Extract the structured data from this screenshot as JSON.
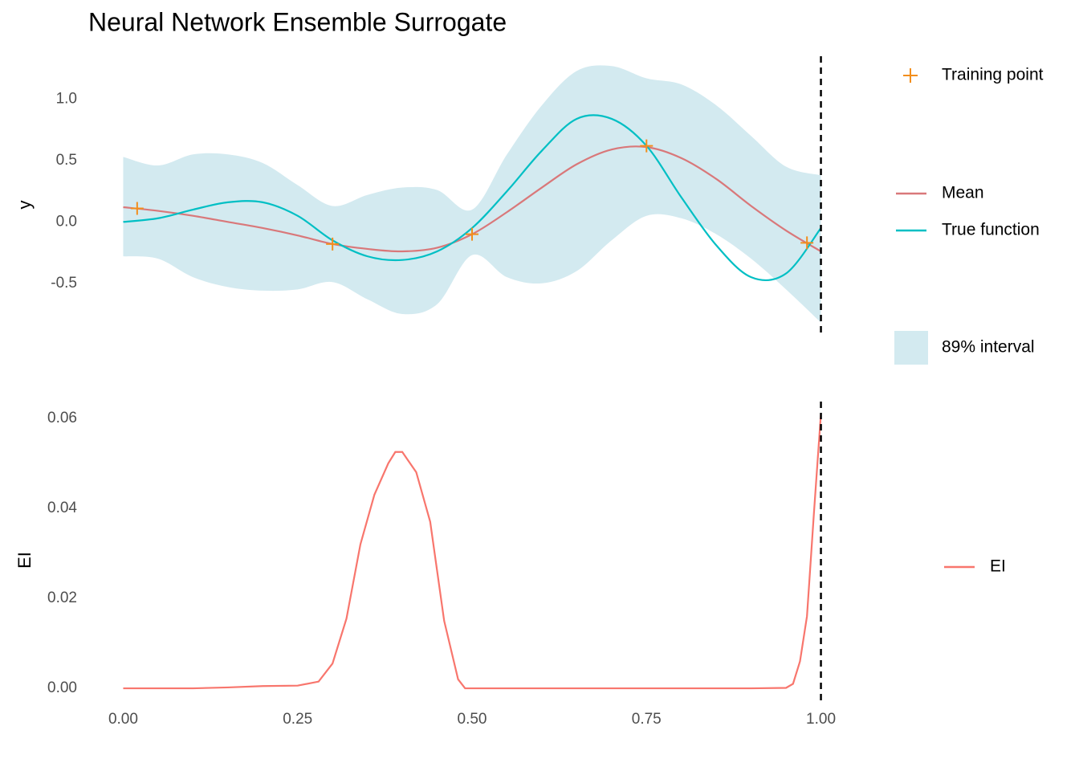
{
  "chart_data": [
    {
      "type": "line",
      "title": "Neural Network Ensemble Surrogate",
      "y_label": "y",
      "x": [
        0,
        0.05,
        0.1,
        0.15,
        0.2,
        0.25,
        0.3,
        0.35,
        0.4,
        0.45,
        0.5,
        0.55,
        0.6,
        0.65,
        0.7,
        0.75,
        0.8,
        0.85,
        0.9,
        0.95,
        1
      ],
      "series": [
        {
          "name": "Mean",
          "color": "#d9787a",
          "values": [
            0.12,
            0.09,
            0.05,
            0.0,
            -0.05,
            -0.11,
            -0.18,
            -0.22,
            -0.24,
            -0.21,
            -0.1,
            0.08,
            0.28,
            0.47,
            0.59,
            0.61,
            0.52,
            0.35,
            0.13,
            -0.07,
            -0.24
          ]
        },
        {
          "name": "True function",
          "color": "#00bfc4",
          "values": [
            0,
            0.03,
            0.1,
            0.16,
            0.16,
            0.05,
            -0.15,
            -0.28,
            -0.31,
            -0.24,
            -0.05,
            0.25,
            0.58,
            0.84,
            0.84,
            0.62,
            0.2,
            -0.19,
            -0.45,
            -0.42,
            -0.05
          ]
        }
      ],
      "band": {
        "name": "89% interval",
        "color": "#d3eaf0",
        "upper": [
          0.53,
          0.46,
          0.55,
          0.55,
          0.48,
          0.3,
          0.13,
          0.22,
          0.28,
          0.26,
          0.1,
          0.55,
          0.95,
          1.23,
          1.27,
          1.17,
          1.12,
          0.95,
          0.7,
          0.45,
          0.38
        ],
        "lower": [
          -0.28,
          -0.3,
          -0.45,
          -0.53,
          -0.56,
          -0.55,
          -0.49,
          -0.63,
          -0.75,
          -0.67,
          -0.27,
          -0.45,
          -0.5,
          -0.4,
          -0.15,
          0.05,
          0.03,
          -0.1,
          -0.3,
          -0.55,
          -0.82
        ]
      },
      "points": {
        "name": "Training point",
        "color": "#f28e1c",
        "x": [
          0.02,
          0.3,
          0.5,
          0.75,
          0.98
        ],
        "y": [
          0.11,
          -0.18,
          -0.1,
          0.62,
          -0.17
        ]
      },
      "vline": 1,
      "xlim": [
        -0.05,
        1.05
      ],
      "ylim": [
        -0.94,
        1.35
      ],
      "yticks": [
        {
          "value": -0.5,
          "label": "-0.5"
        },
        {
          "value": 0,
          "label": "0.0"
        },
        {
          "value": 0.5,
          "label": "0.5"
        },
        {
          "value": 1,
          "label": "1.0"
        }
      ]
    },
    {
      "type": "line",
      "y_label": "EI",
      "x": [
        0,
        0.05,
        0.1,
        0.15,
        0.2,
        0.25,
        0.28,
        0.3,
        0.32,
        0.34,
        0.36,
        0.38,
        0.39,
        0.4,
        0.42,
        0.44,
        0.46,
        0.48,
        0.49,
        0.5,
        0.6,
        0.7,
        0.8,
        0.9,
        0.95,
        0.96,
        0.97,
        0.98,
        0.99,
        1
      ],
      "series": [
        {
          "name": "EI",
          "color": "#f8766d",
          "values": [
            0,
            0,
            0,
            0.0002,
            0.0005,
            0.0006,
            0.0015,
            0.0055,
            0.0155,
            0.032,
            0.043,
            0.05,
            0.0525,
            0.0525,
            0.048,
            0.037,
            0.015,
            0.002,
            0,
            0,
            0,
            0,
            0,
            0,
            0.0001,
            0.001,
            0.006,
            0.016,
            0.039,
            0.061
          ]
        }
      ],
      "vline": 1,
      "xlim": [
        -0.05,
        1.05
      ],
      "ylim": [
        -0.0032,
        0.0637
      ],
      "yticks": [
        {
          "value": 0,
          "label": "0.00"
        },
        {
          "value": 0.02,
          "label": "0.02"
        },
        {
          "value": 0.04,
          "label": "0.04"
        },
        {
          "value": 0.06,
          "label": "0.06"
        }
      ],
      "xticks": [
        {
          "value": 0,
          "label": "0.00"
        },
        {
          "value": 0.25,
          "label": "0.25"
        },
        {
          "value": 0.5,
          "label": "0.50"
        },
        {
          "value": 0.75,
          "label": "0.75"
        },
        {
          "value": 1,
          "label": "1.00"
        }
      ]
    }
  ]
}
